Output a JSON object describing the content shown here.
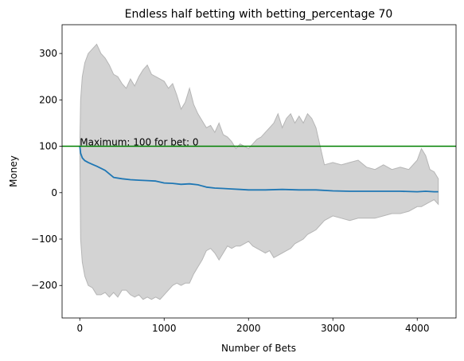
{
  "chart_data": {
    "type": "line",
    "title": "Endless half betting with betting_percentage 70",
    "xlabel": "Number of Bets",
    "ylabel": "Money",
    "xlim": [
      -210,
      4460
    ],
    "ylim": [
      -270,
      362
    ],
    "x_ticks": [
      0,
      1000,
      2000,
      3000,
      4000
    ],
    "y_ticks": [
      -200,
      -100,
      0,
      100,
      200,
      300
    ],
    "x_tick_labels": [
      "0",
      "1000",
      "2000",
      "3000",
      "4000"
    ],
    "y_tick_labels": [
      "−200",
      "−100",
      "0",
      "100",
      "200",
      "300"
    ],
    "grid": false,
    "colors": {
      "mean_line": "#1f77b4",
      "band_fill": "#d3d3d3",
      "band_edge": "#b5b5b5",
      "reference_line": "#008000"
    },
    "reference_line": {
      "y": 100
    },
    "annotation": {
      "text": "Maximum: 100 for bet: 0",
      "x": 0,
      "y": 100
    },
    "series": [
      {
        "x": [
          0,
          10,
          30,
          60,
          100,
          150,
          200,
          300,
          400,
          500,
          600,
          700,
          800,
          900,
          1000,
          1100,
          1200,
          1300,
          1400,
          1500,
          1600,
          1700,
          1800,
          1900,
          2000,
          2200,
          2400,
          2600,
          2800,
          3000,
          3200,
          3400,
          3600,
          3800,
          4000,
          4100,
          4200,
          4250
        ],
        "values": [
          100,
          85,
          75,
          69,
          65,
          61,
          57,
          48,
          33,
          30,
          28,
          27,
          26,
          25,
          21,
          20,
          18,
          19,
          17,
          12,
          10,
          9,
          8,
          7,
          6,
          6,
          7,
          6,
          6,
          4,
          3,
          3,
          3,
          3,
          2,
          3,
          2,
          2
        ]
      },
      {
        "x": [
          0,
          10,
          30,
          60,
          100,
          150,
          200,
          250,
          300,
          350,
          400,
          450,
          500,
          550,
          600,
          650,
          700,
          750,
          800,
          850,
          900,
          950,
          1000,
          1050,
          1100,
          1150,
          1200,
          1250,
          1300,
          1350,
          1400,
          1450,
          1500,
          1550,
          1600,
          1650,
          1700,
          1750,
          1800,
          1850,
          1900,
          1950,
          2000,
          2050,
          2100,
          2150,
          2200,
          2250,
          2300,
          2350,
          2400,
          2450,
          2500,
          2550,
          2600,
          2650,
          2700,
          2750,
          2800,
          2850,
          2900,
          3000,
          3100,
          3200,
          3300,
          3400,
          3500,
          3600,
          3700,
          3800,
          3900,
          4000,
          4050,
          4100,
          4150,
          4200,
          4250
        ],
        "values": [
          100,
          200,
          250,
          280,
          300,
          310,
          320,
          300,
          290,
          275,
          255,
          250,
          235,
          225,
          245,
          230,
          250,
          265,
          275,
          255,
          250,
          245,
          240,
          225,
          235,
          210,
          180,
          195,
          225,
          190,
          170,
          155,
          140,
          145,
          130,
          150,
          125,
          120,
          110,
          95,
          105,
          100,
          95,
          105,
          115,
          120,
          130,
          140,
          150,
          170,
          140,
          160,
          170,
          150,
          165,
          150,
          170,
          160,
          140,
          100,
          60,
          65,
          60,
          65,
          70,
          55,
          50,
          60,
          50,
          55,
          50,
          70,
          95,
          80,
          50,
          45,
          30
        ]
      },
      {
        "x": [
          0,
          10,
          30,
          60,
          100,
          150,
          200,
          250,
          300,
          350,
          400,
          450,
          500,
          550,
          600,
          650,
          700,
          750,
          800,
          850,
          900,
          950,
          1000,
          1050,
          1100,
          1150,
          1200,
          1250,
          1300,
          1350,
          1400,
          1450,
          1500,
          1550,
          1600,
          1650,
          1700,
          1750,
          1800,
          1850,
          1900,
          1950,
          2000,
          2050,
          2100,
          2150,
          2200,
          2250,
          2300,
          2350,
          2400,
          2450,
          2500,
          2550,
          2600,
          2650,
          2700,
          2750,
          2800,
          2850,
          2900,
          3000,
          3100,
          3200,
          3300,
          3400,
          3500,
          3600,
          3700,
          3800,
          3900,
          4000,
          4050,
          4100,
          4150,
          4200,
          4250
        ],
        "values": [
          100,
          -100,
          -150,
          -180,
          -200,
          -205,
          -220,
          -220,
          -215,
          -225,
          -215,
          -225,
          -210,
          -210,
          -220,
          -225,
          -220,
          -230,
          -225,
          -230,
          -225,
          -230,
          -220,
          -210,
          -200,
          -195,
          -200,
          -195,
          -195,
          -175,
          -160,
          -145,
          -125,
          -120,
          -130,
          -145,
          -130,
          -115,
          -120,
          -115,
          -115,
          -110,
          -105,
          -115,
          -120,
          -125,
          -130,
          -125,
          -140,
          -135,
          -130,
          -125,
          -120,
          -110,
          -105,
          -100,
          -90,
          -85,
          -80,
          -70,
          -60,
          -50,
          -55,
          -60,
          -55,
          -55,
          -55,
          -50,
          -45,
          -45,
          -40,
          -30,
          -30,
          -25,
          -20,
          -15,
          -25
        ]
      }
    ]
  }
}
